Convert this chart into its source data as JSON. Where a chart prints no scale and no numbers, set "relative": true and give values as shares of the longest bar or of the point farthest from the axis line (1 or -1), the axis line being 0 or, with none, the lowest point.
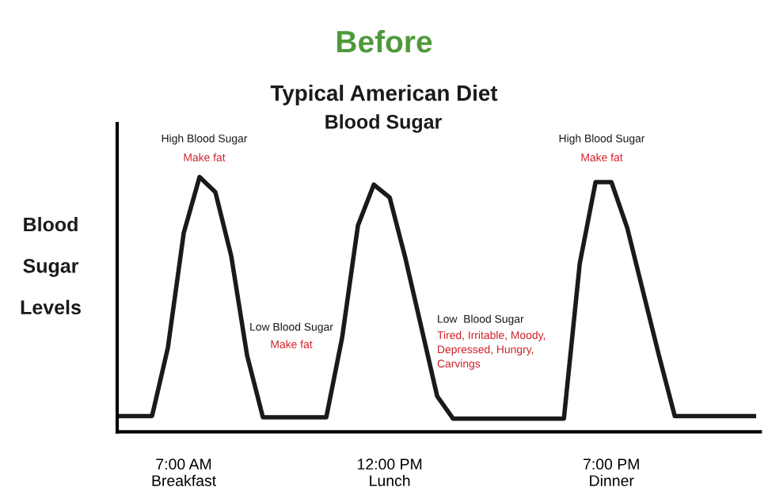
{
  "chart_data": {
    "type": "line",
    "title": "Before",
    "subtitle": "Typical American Diet",
    "ylabel": "Blood\nSugar\nLevels",
    "relative": true,
    "categories": [
      null,
      null,
      null,
      null,
      "7:00 AM\nBreakfast",
      null,
      null,
      null,
      null,
      null,
      null,
      null,
      null,
      null,
      null,
      null,
      null,
      "12:00 PM\nLunch",
      null,
      null,
      null,
      null,
      null,
      null,
      null,
      null,
      null,
      null,
      null,
      null,
      null,
      "7:00 PM\nDinner",
      null,
      null,
      null,
      null,
      null,
      null,
      null,
      null,
      null
    ],
    "series": [
      {
        "color": "#1a1a1a",
        "values": [
          0.062,
          0.062,
          0.062,
          0.33,
          0.78,
          1.0,
          0.94,
          0.69,
          0.3,
          0.057,
          0.057,
          0.057,
          0.057,
          0.057,
          0.37,
          0.81,
          0.97,
          0.92,
          0.68,
          0.41,
          0.14,
          0.052,
          0.052,
          0.052,
          0.052,
          0.052,
          0.052,
          0.052,
          0.052,
          0.66,
          0.98,
          0.98,
          0.8,
          0.55,
          0.3,
          0.062,
          0.062,
          0.062,
          0.062,
          0.062,
          0.062
        ]
      }
    ],
    "annotations": [
      "Blood Sugar",
      "High Blood Sugar",
      "Make fat",
      "Low Blood Sugar",
      "Make fat",
      "Low  Blood Sugar",
      "Tired, Irritable, Moody,\nDepressed, Hungry,\nCarvings",
      "High Blood Sugar",
      "Make fat"
    ],
    "grid": false,
    "legend": false,
    "marker": "none",
    "line_style": "solid"
  }
}
